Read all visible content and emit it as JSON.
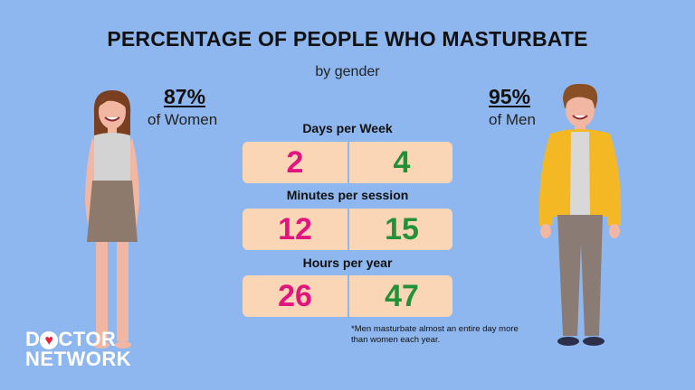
{
  "title": "PERCENTAGE OF PEOPLE WHO MASTURBATE",
  "subtitle": "by gender",
  "women": {
    "percent": "87%",
    "label": "of Women"
  },
  "men": {
    "percent": "95%",
    "label": "of Men"
  },
  "rows": [
    {
      "label": "Days per Week",
      "women": "2",
      "men": "4"
    },
    {
      "label": "Minutes per session",
      "women": "12",
      "men": "15"
    },
    {
      "label": "Hours per year",
      "women": "26",
      "men": "47"
    }
  ],
  "footnote": "*Men masturbate almost an entire day more than women each year.",
  "logo": {
    "line1_pre": "D",
    "line1_post": "CTOR",
    "line2": "NETWORK"
  },
  "colors": {
    "background": "#8fb7ef",
    "women_value": "#e2157f",
    "men_value": "#23913a",
    "pill": "#fbd6b6"
  }
}
